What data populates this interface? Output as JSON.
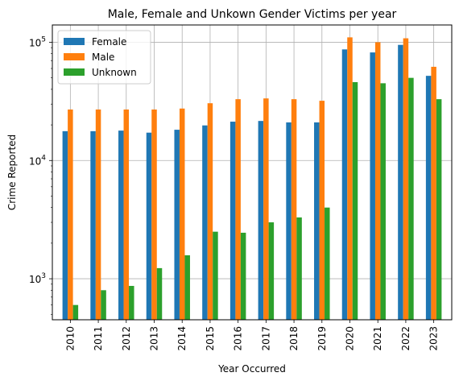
{
  "chart_data": {
    "type": "bar",
    "title": "Male, Female and Unkown Gender Victims per year",
    "xlabel": "Year Occurred",
    "ylabel": "Crime Reported",
    "yscale": "log",
    "ylim": [
      450,
      140000
    ],
    "grid": true,
    "legend_position": "top-left",
    "categories": [
      "2010",
      "2011",
      "2012",
      "2013",
      "2014",
      "2015",
      "2016",
      "2017",
      "2018",
      "2019",
      "2020",
      "2021",
      "2022",
      "2023"
    ],
    "yticks": [
      {
        "value": 1000,
        "base": "10",
        "exp": "3"
      },
      {
        "value": 10000,
        "base": "10",
        "exp": "4"
      },
      {
        "value": 100000,
        "base": "10",
        "exp": "5"
      }
    ],
    "series": [
      {
        "name": "Female",
        "color": "#1f77b4",
        "values": [
          17700,
          17700,
          17900,
          17200,
          18200,
          19800,
          21300,
          21600,
          21000,
          21000,
          87000,
          82000,
          95000,
          52000
        ]
      },
      {
        "name": "Male",
        "color": "#ff7f0e",
        "values": [
          27000,
          27000,
          27000,
          27000,
          27500,
          30500,
          33000,
          33500,
          33000,
          32000,
          110000,
          100000,
          108000,
          62000
        ]
      },
      {
        "name": "Unknown",
        "color": "#2ca02c",
        "values": [
          600,
          800,
          870,
          1230,
          1580,
          2500,
          2450,
          3000,
          3300,
          4000,
          46000,
          45000,
          50000,
          33000
        ]
      }
    ]
  }
}
